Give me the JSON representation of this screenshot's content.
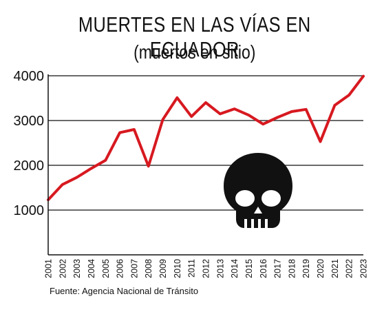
{
  "title": "MUERTES EN LAS VÍAS EN ECUADOR",
  "subtitle": "(muertos en sitio)",
  "source": "Fuente: Agencia Nacional de Tránsito",
  "colors": {
    "line": "#d71920",
    "axis": "#111111",
    "grid": "#111111",
    "icon": "#111111"
  },
  "icon": "skull-icon",
  "chart_data": {
    "type": "line",
    "x": [
      "2001",
      "2002",
      "2003",
      "2004",
      "2005",
      "2006",
      "2007",
      "2008",
      "2009",
      "2010",
      "2011",
      "2012",
      "2013",
      "2014",
      "2015",
      "2016",
      "2017",
      "2018",
      "2019",
      "2020",
      "2021",
      "2022",
      "2023"
    ],
    "values": [
      1230,
      1570,
      1730,
      1930,
      2110,
      2730,
      2800,
      1980,
      3020,
      3510,
      3090,
      3400,
      3150,
      3260,
      3120,
      2920,
      3070,
      3200,
      3250,
      2530,
      3340,
      3570,
      3990
    ],
    "yticks": [
      1000,
      2000,
      3000,
      4000
    ],
    "ylim": [
      0,
      4000
    ],
    "grid": true
  }
}
